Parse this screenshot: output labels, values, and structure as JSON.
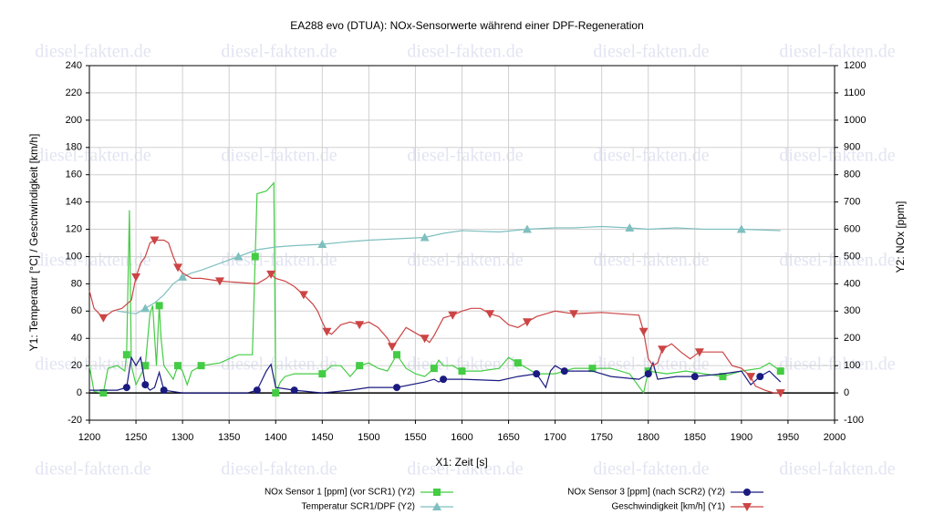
{
  "watermark": "diesel-fakten.de",
  "chart_data": {
    "type": "line",
    "title": "EA288 evo (DTUA): NOx-Sensorwerte während einer DPF-Regeneration",
    "xlabel": "X1: Zeit [s]",
    "ylabel": "Y1: Temperatur [°C] / Geschwindigkeit [km/h]",
    "y2label": "Y2: NOx [ppm]",
    "xlim": [
      1200,
      2000
    ],
    "xticks": [
      1200,
      1250,
      1300,
      1350,
      1400,
      1450,
      1500,
      1550,
      1600,
      1650,
      1700,
      1750,
      1800,
      1850,
      1900,
      1950,
      2000
    ],
    "ylim": [
      -20,
      240
    ],
    "yticks": [
      -20,
      0,
      20,
      40,
      60,
      80,
      100,
      120,
      140,
      160,
      180,
      200,
      220,
      240
    ],
    "y2lim": [
      -100,
      1200
    ],
    "y2ticks": [
      -100,
      0,
      100,
      200,
      300,
      400,
      500,
      600,
      700,
      800,
      900,
      1000,
      1100,
      1200
    ],
    "grid": true,
    "series": [
      {
        "name": "NOx Sensor 1 [ppm] (vor SCR1) (Y2)",
        "color": "#44cc44",
        "marker": "square",
        "axis": "y2",
        "x": [
          1200,
          1205,
          1215,
          1220,
          1230,
          1238,
          1240,
          1243,
          1245,
          1250,
          1260,
          1265,
          1268,
          1272,
          1275,
          1277,
          1280,
          1290,
          1295,
          1300,
          1305,
          1310,
          1320,
          1340,
          1360,
          1375,
          1378,
          1380,
          1390,
          1398,
          1400,
          1405,
          1410,
          1420,
          1450,
          1460,
          1470,
          1480,
          1490,
          1500,
          1510,
          1520,
          1530,
          1540,
          1550,
          1560,
          1570,
          1575,
          1580,
          1590,
          1600,
          1620,
          1640,
          1650,
          1660,
          1680,
          1700,
          1720,
          1740,
          1760,
          1780,
          1795,
          1800,
          1820,
          1840,
          1860,
          1880,
          1900,
          1920,
          1930,
          1942
        ],
        "values": [
          100,
          5,
          0,
          90,
          100,
          80,
          140,
          670,
          100,
          30,
          100,
          290,
          320,
          100,
          320,
          200,
          100,
          50,
          100,
          80,
          30,
          80,
          100,
          110,
          140,
          140,
          500,
          730,
          740,
          770,
          0,
          40,
          60,
          70,
          70,
          100,
          100,
          60,
          100,
          110,
          90,
          80,
          140,
          90,
          70,
          60,
          90,
          120,
          100,
          100,
          80,
          80,
          90,
          130,
          110,
          70,
          70,
          90,
          90,
          90,
          70,
          0,
          80,
          70,
          80,
          70,
          60,
          80,
          90,
          110,
          80
        ]
      },
      {
        "name": "NOx Sensor 3 [ppm] (nach SCR2) (Y2)",
        "color": "#1a1a80",
        "marker": "circle",
        "axis": "y2",
        "x": [
          1200,
          1230,
          1240,
          1245,
          1250,
          1255,
          1260,
          1265,
          1270,
          1275,
          1280,
          1300,
          1340,
          1370,
          1380,
          1390,
          1395,
          1400,
          1420,
          1450,
          1480,
          1500,
          1530,
          1560,
          1570,
          1575,
          1580,
          1600,
          1640,
          1660,
          1680,
          1690,
          1695,
          1700,
          1710,
          1740,
          1760,
          1790,
          1800,
          1805,
          1810,
          1830,
          1850,
          1880,
          1900,
          1910,
          1920,
          1930,
          1942
        ],
        "values": [
          10,
          10,
          20,
          130,
          100,
          130,
          30,
          10,
          20,
          75,
          10,
          0,
          0,
          0,
          10,
          80,
          105,
          20,
          10,
          0,
          10,
          20,
          20,
          40,
          50,
          40,
          50,
          50,
          45,
          60,
          70,
          20,
          80,
          100,
          80,
          80,
          60,
          50,
          70,
          110,
          50,
          60,
          60,
          70,
          80,
          30,
          60,
          80,
          40
        ]
      },
      {
        "name": "Temperatur SCR1/DPF (Y2)",
        "color": "#7fbfbf",
        "marker": "triangle-up",
        "axis": "y2",
        "x": [
          1230,
          1250,
          1260,
          1270,
          1280,
          1290,
          1300,
          1310,
          1320,
          1340,
          1360,
          1380,
          1400,
          1420,
          1450,
          1480,
          1500,
          1530,
          1560,
          1580,
          1600,
          1640,
          1670,
          1700,
          1720,
          1750,
          1780,
          1800,
          1830,
          1860,
          1900,
          1942
        ],
        "values": [
          300,
          290,
          310,
          330,
          360,
          400,
          425,
          440,
          450,
          475,
          500,
          525,
          535,
          540,
          545,
          555,
          560,
          565,
          570,
          585,
          595,
          590,
          600,
          605,
          605,
          610,
          605,
          600,
          605,
          600,
          600,
          595
        ]
      },
      {
        "name": "Geschwindigkeit [km/h] (Y1)",
        "color": "#cc4444",
        "marker": "triangle-down",
        "axis": "y",
        "x": [
          1200,
          1205,
          1215,
          1225,
          1235,
          1245,
          1250,
          1255,
          1260,
          1265,
          1270,
          1280,
          1285,
          1290,
          1295,
          1300,
          1310,
          1320,
          1340,
          1360,
          1380,
          1390,
          1395,
          1400,
          1410,
          1420,
          1430,
          1440,
          1445,
          1450,
          1455,
          1460,
          1470,
          1480,
          1490,
          1500,
          1510,
          1520,
          1525,
          1530,
          1540,
          1550,
          1560,
          1565,
          1570,
          1580,
          1590,
          1600,
          1610,
          1620,
          1630,
          1640,
          1650,
          1660,
          1670,
          1680,
          1690,
          1700,
          1720,
          1750,
          1770,
          1790,
          1795,
          1800,
          1805,
          1810,
          1815,
          1825,
          1835,
          1845,
          1855,
          1880,
          1890,
          1900,
          1910,
          1915,
          1925,
          1935,
          1942
        ],
        "values": [
          75,
          62,
          55,
          60,
          62,
          68,
          85,
          95,
          100,
          110,
          112,
          112,
          110,
          100,
          92,
          88,
          84,
          84,
          82,
          81,
          80,
          84,
          87,
          84,
          82,
          78,
          72,
          65,
          60,
          52,
          45,
          43,
          50,
          52,
          50,
          52,
          48,
          40,
          34,
          38,
          48,
          44,
          40,
          37,
          42,
          55,
          57,
          60,
          62,
          62,
          58,
          56,
          50,
          48,
          52,
          56,
          58,
          60,
          58,
          59,
          58,
          57,
          45,
          25,
          20,
          22,
          32,
          36,
          30,
          25,
          30,
          30,
          20,
          18,
          12,
          5,
          2,
          0,
          0
        ]
      }
    ]
  }
}
